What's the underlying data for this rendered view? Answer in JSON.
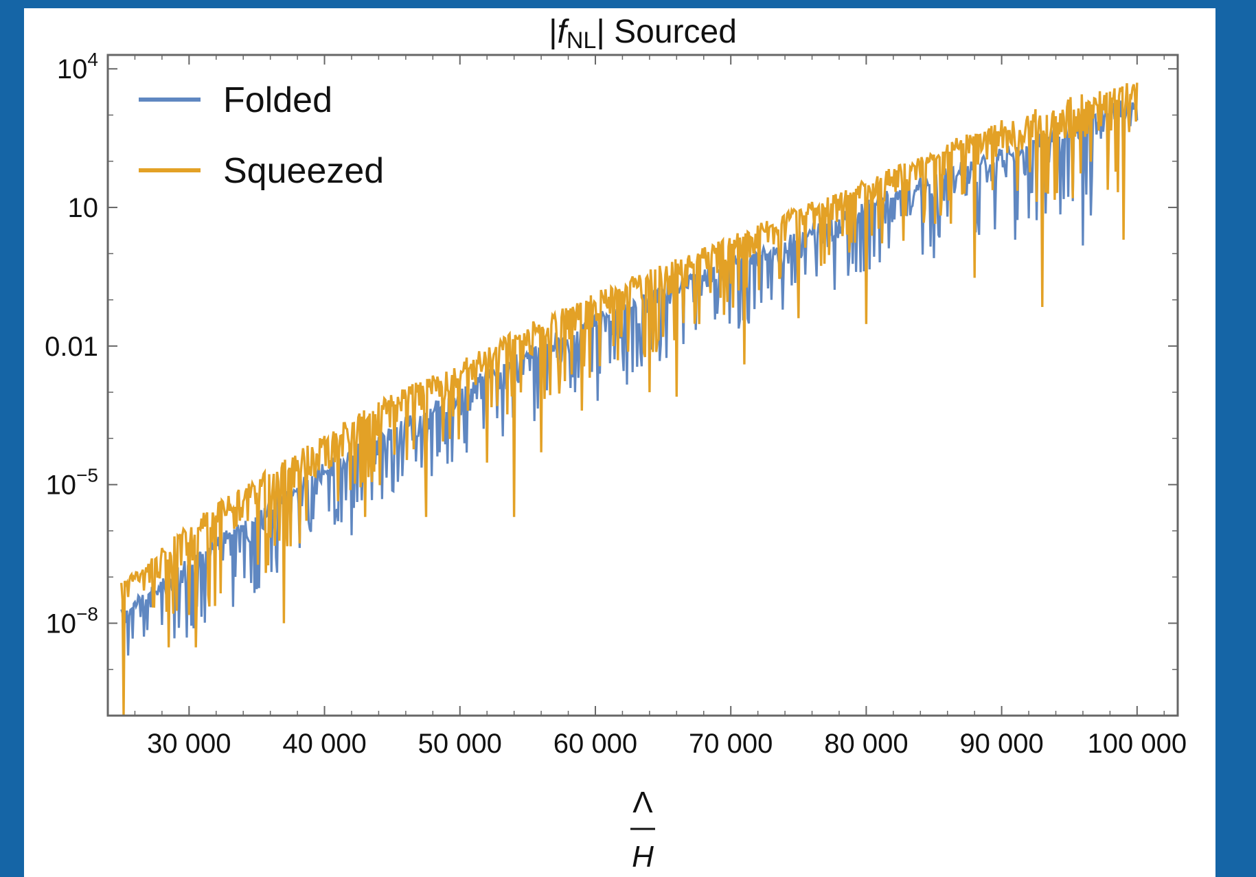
{
  "colors": {
    "background": "#1565a6",
    "panel": "#ffffff",
    "frame": "#666666",
    "folded": "#5f87c1",
    "squeezed": "#e3a126"
  },
  "chart_data": {
    "type": "line",
    "title_prefix": "|",
    "title_symbol": "f",
    "title_subscript": "NL",
    "title_suffix": "| Sourced",
    "xlabel_numerator": "Λ",
    "xlabel_denominator": "H",
    "xscale": "linear",
    "yscale": "log",
    "xlim": [
      24000,
      103000
    ],
    "ylim": [
      1e-10,
      20000
    ],
    "x_ticks": [
      {
        "value": 30000,
        "label": "30 000"
      },
      {
        "value": 40000,
        "label": "40 000"
      },
      {
        "value": 50000,
        "label": "50 000"
      },
      {
        "value": 60000,
        "label": "60 000"
      },
      {
        "value": 70000,
        "label": "70 000"
      },
      {
        "value": 80000,
        "label": "80 000"
      },
      {
        "value": 90000,
        "label": "90 000"
      },
      {
        "value": 100000,
        "label": "100 000"
      }
    ],
    "y_ticks": [
      {
        "value": 10000,
        "base": "10",
        "exp": "4"
      },
      {
        "value": 10,
        "base": "10",
        "exp": ""
      },
      {
        "value": 0.01,
        "base": "0.01",
        "exp": ""
      },
      {
        "value": 1e-05,
        "base": "10",
        "exp": "−5"
      },
      {
        "value": 1e-08,
        "base": "10",
        "exp": "−8"
      }
    ],
    "grid": false,
    "legend_position": "top-left",
    "series": [
      {
        "name": "Folded",
        "color": "#5f87c1",
        "x": [
          25000,
          30000,
          35000,
          40000,
          45000,
          50000,
          55000,
          60000,
          65000,
          70000,
          75000,
          80000,
          85000,
          90000,
          95000,
          100000
        ],
        "y_upper": [
          2e-08,
          3e-07,
          3e-06,
          3e-05,
          0.0002,
          0.0015,
          0.01,
          0.05,
          0.2,
          0.8,
          3,
          15,
          60,
          200,
          700,
          3000
        ],
        "y_lower": [
          2e-09,
          5e-09,
          4e-08,
          1e-06,
          5e-06,
          3e-05,
          0.00015,
          0.0006,
          0.003,
          0.02,
          0.08,
          0.3,
          1,
          3,
          5,
          8
        ],
        "deep_dips": [
          [
            25500,
            2e-09
          ],
          [
            37500,
            1.2e-06
          ],
          [
            42000,
            8e-07
          ],
          [
            45500,
            5e-05
          ],
          [
            48500,
            5e-05
          ],
          [
            58500,
            0.001
          ],
          [
            62000,
            0.008
          ],
          [
            69000,
            0.05
          ],
          [
            73000,
            0.1
          ],
          [
            79000,
            0.6
          ],
          [
            85000,
            0.8
          ],
          [
            91000,
            2
          ],
          [
            96000,
            1.5
          ]
        ]
      },
      {
        "name": "Squeezed",
        "color": "#e3a126",
        "x": [
          25000,
          30000,
          35000,
          40000,
          45000,
          50000,
          55000,
          60000,
          65000,
          70000,
          75000,
          80000,
          85000,
          90000,
          95000,
          100000
        ],
        "y_upper": [
          8e-08,
          1.5e-06,
          1.5e-05,
          0.00012,
          0.001,
          0.005,
          0.03,
          0.15,
          0.6,
          2.5,
          10,
          40,
          200,
          800,
          2500,
          6000
        ],
        "y_lower": [
          5e-09,
          1e-08,
          8e-08,
          1.5e-06,
          1e-05,
          8e-05,
          0.0004,
          0.002,
          0.008,
          0.05,
          0.3,
          1,
          3,
          8,
          15,
          10
        ],
        "deep_dips": [
          [
            25200,
            1e-10
          ],
          [
            28500,
            3e-09
          ],
          [
            30500,
            3e-09
          ],
          [
            37000,
            1e-08
          ],
          [
            43000,
            2e-06
          ],
          [
            47500,
            2e-06
          ],
          [
            52000,
            3e-05
          ],
          [
            54000,
            2e-06
          ],
          [
            56000,
            5e-05
          ],
          [
            59000,
            0.0004
          ],
          [
            64000,
            0.001
          ],
          [
            66000,
            0.0008
          ],
          [
            71000,
            0.004
          ],
          [
            75000,
            0.04
          ],
          [
            80000,
            0.03
          ],
          [
            88000,
            0.3
          ],
          [
            93000,
            0.07
          ],
          [
            99000,
            2
          ]
        ]
      }
    ]
  }
}
